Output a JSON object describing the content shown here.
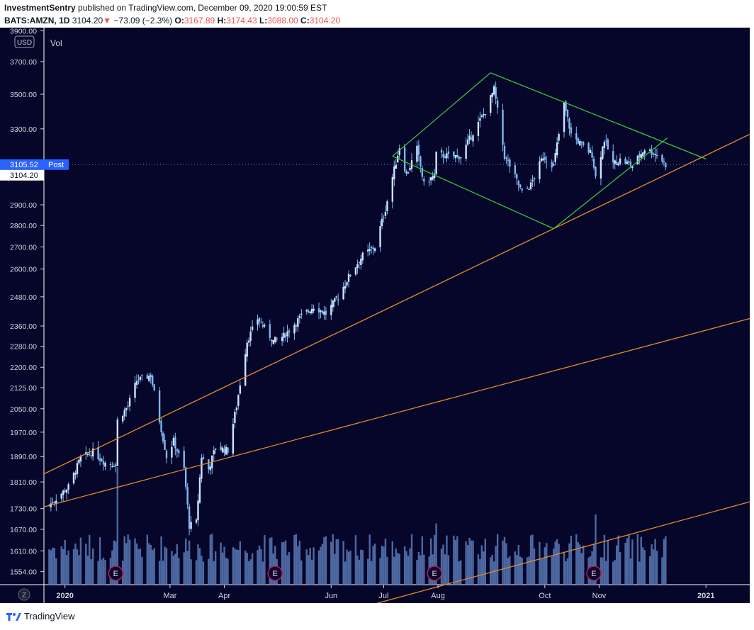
{
  "header": {
    "publisher": "InvestmentSentry",
    "published_text": "published on TradingView.com, December 09, 2020 19:00:59 EST",
    "symbol": "BATS:AMZN, 1D",
    "last": "3104.20",
    "change_arrow": "▼",
    "change": "−73.09 (−2.3%)",
    "o_label": "O:",
    "o_val": "3167.89",
    "h_label": "H:",
    "h_val": "3174.43",
    "l_label": "L:",
    "l_val": "3088.00",
    "c_label": "C:",
    "c_val": "3104.20"
  },
  "pane": {
    "currency_badge": "USD",
    "vol_label": "Vol",
    "post_label": "Post",
    "post_price": "3105.52",
    "last_price": "3104.20",
    "goto_icon": "Z",
    "earnings_marker": "E"
  },
  "footer": {
    "brand": "TradingView",
    "logo_icon": "tradingview-logo-icon"
  },
  "colors": {
    "background": "#06062a",
    "candle": "#7eb8f0",
    "volume": "#5b7bb8",
    "orange_line": "#e08a2c",
    "green_line": "#3cc43c",
    "post_badge": "#2962ff",
    "earnings": "#c2185b"
  },
  "chart_data": {
    "type": "candlestick",
    "title": "BATS:AMZN, 1D",
    "y_scale": "log",
    "ylim": [
      1520,
      3920
    ],
    "y_ticks": [
      3900,
      3700,
      3500,
      3300,
      2900,
      2800,
      2700,
      2600,
      2480,
      2360,
      2280,
      2200,
      2125,
      2050,
      1970,
      1890,
      1810,
      1730,
      1670,
      1610,
      1554
    ],
    "y_tick_labels": [
      "3900.00",
      "3700.00",
      "3500.00",
      "3300.00",
      "2900.00",
      "2800.00",
      "2700.00",
      "2600.00",
      "2480.00",
      "2360.00",
      "2280.00",
      "2200.00",
      "2125.00",
      "2050.00",
      "1970.00",
      "1890.00",
      "1810.00",
      "1730.00",
      "1670.00",
      "1610.00",
      "1554.00"
    ],
    "x_range": [
      "2019-12-20",
      "2021-01-26"
    ],
    "x_ticks": [
      {
        "date": "2020-01-01",
        "label": "2020"
      },
      {
        "date": "2020-03-01",
        "label": "Mar"
      },
      {
        "date": "2020-04-01",
        "label": "Apr"
      },
      {
        "date": "2020-06-01",
        "label": "Jun"
      },
      {
        "date": "2020-07-01",
        "label": "Jul"
      },
      {
        "date": "2020-08-01",
        "label": "Aug"
      },
      {
        "date": "2020-10-01",
        "label": "Oct"
      },
      {
        "date": "2020-11-01",
        "label": "Nov"
      },
      {
        "date": "2021-01-01",
        "label": "2021"
      }
    ],
    "close_path": [
      [
        "2019-12-23",
        1740
      ],
      [
        "2020-01-03",
        1795
      ],
      [
        "2020-01-10",
        1885
      ],
      [
        "2020-01-17",
        1905
      ],
      [
        "2020-01-24",
        1870
      ],
      [
        "2020-01-30",
        1865
      ],
      [
        "2020-01-31",
        2010
      ],
      [
        "2020-02-06",
        2060
      ],
      [
        "2020-02-11",
        2150
      ],
      [
        "2020-02-19",
        2170
      ],
      [
        "2020-02-24",
        2010
      ],
      [
        "2020-02-28",
        1890
      ],
      [
        "2020-03-03",
        1940
      ],
      [
        "2020-03-09",
        1850
      ],
      [
        "2020-03-12",
        1680
      ],
      [
        "2020-03-16",
        1690
      ],
      [
        "2020-03-19",
        1890
      ],
      [
        "2020-03-23",
        1850
      ],
      [
        "2020-03-27",
        1920
      ],
      [
        "2020-04-03",
        1910
      ],
      [
        "2020-04-08",
        2060
      ],
      [
        "2020-04-14",
        2300
      ],
      [
        "2020-04-20",
        2390
      ],
      [
        "2020-04-29",
        2300
      ],
      [
        "2020-05-05",
        2320
      ],
      [
        "2020-05-15",
        2400
      ],
      [
        "2020-05-22",
        2440
      ],
      [
        "2020-05-29",
        2410
      ],
      [
        "2020-06-05",
        2480
      ],
      [
        "2020-06-12",
        2580
      ],
      [
        "2020-06-19",
        2660
      ],
      [
        "2020-06-26",
        2700
      ],
      [
        "2020-07-02",
        2880
      ],
      [
        "2020-07-10",
        3200
      ],
      [
        "2020-07-14",
        3050
      ],
      [
        "2020-07-20",
        3190
      ],
      [
        "2020-07-24",
        3000
      ],
      [
        "2020-07-30",
        3050
      ],
      [
        "2020-07-31",
        3160
      ],
      [
        "2020-08-07",
        3150
      ],
      [
        "2020-08-14",
        3150
      ],
      [
        "2020-08-21",
        3280
      ],
      [
        "2020-08-28",
        3400
      ],
      [
        "2020-09-02",
        3530
      ],
      [
        "2020-09-08",
        3150
      ],
      [
        "2020-09-11",
        3100
      ],
      [
        "2020-09-18",
        2960
      ],
      [
        "2020-09-23",
        3000
      ],
      [
        "2020-09-30",
        3150
      ],
      [
        "2020-10-06",
        3100
      ],
      [
        "2020-10-12",
        3440
      ],
      [
        "2020-10-16",
        3270
      ],
      [
        "2020-10-23",
        3200
      ],
      [
        "2020-10-28",
        3160
      ],
      [
        "2020-10-30",
        3040
      ],
      [
        "2020-11-04",
        3240
      ],
      [
        "2020-11-09",
        3110
      ],
      [
        "2020-11-13",
        3130
      ],
      [
        "2020-11-20",
        3100
      ],
      [
        "2020-11-27",
        3190
      ],
      [
        "2020-12-04",
        3160
      ],
      [
        "2020-12-09",
        3104.2
      ]
    ],
    "volume_events": [
      [
        "2020-01-31",
        0.92
      ],
      [
        "2020-07-31",
        0.48
      ],
      [
        "2020-10-30",
        0.55
      ]
    ],
    "earnings_dates": [
      "2020-01-30",
      "2020-04-30",
      "2020-07-30",
      "2020-10-29"
    ],
    "trendlines": [
      {
        "color": "orange",
        "from": [
          "2019-12-20",
          1835
        ],
        "to": [
          "2021-01-26",
          3270
        ]
      },
      {
        "color": "orange",
        "from": [
          "2019-12-20",
          1735
        ],
        "to": [
          "2021-01-26",
          2390
        ]
      },
      {
        "color": "orange",
        "from": [
          "2020-06-25",
          1470
        ],
        "to": [
          "2021-01-26",
          1750
        ]
      },
      {
        "color": "green",
        "from": [
          "2020-07-06",
          3150
        ],
        "to": [
          "2020-08-31",
          3630
        ]
      },
      {
        "color": "green",
        "from": [
          "2020-08-31",
          3630
        ],
        "to": [
          "2021-01-01",
          3135
        ]
      },
      {
        "color": "green",
        "from": [
          "2020-07-06",
          3150
        ],
        "to": [
          "2020-10-06",
          2785
        ]
      },
      {
        "color": "green",
        "from": [
          "2020-10-06",
          2785
        ],
        "to": [
          "2020-12-10",
          3250
        ]
      }
    ]
  }
}
